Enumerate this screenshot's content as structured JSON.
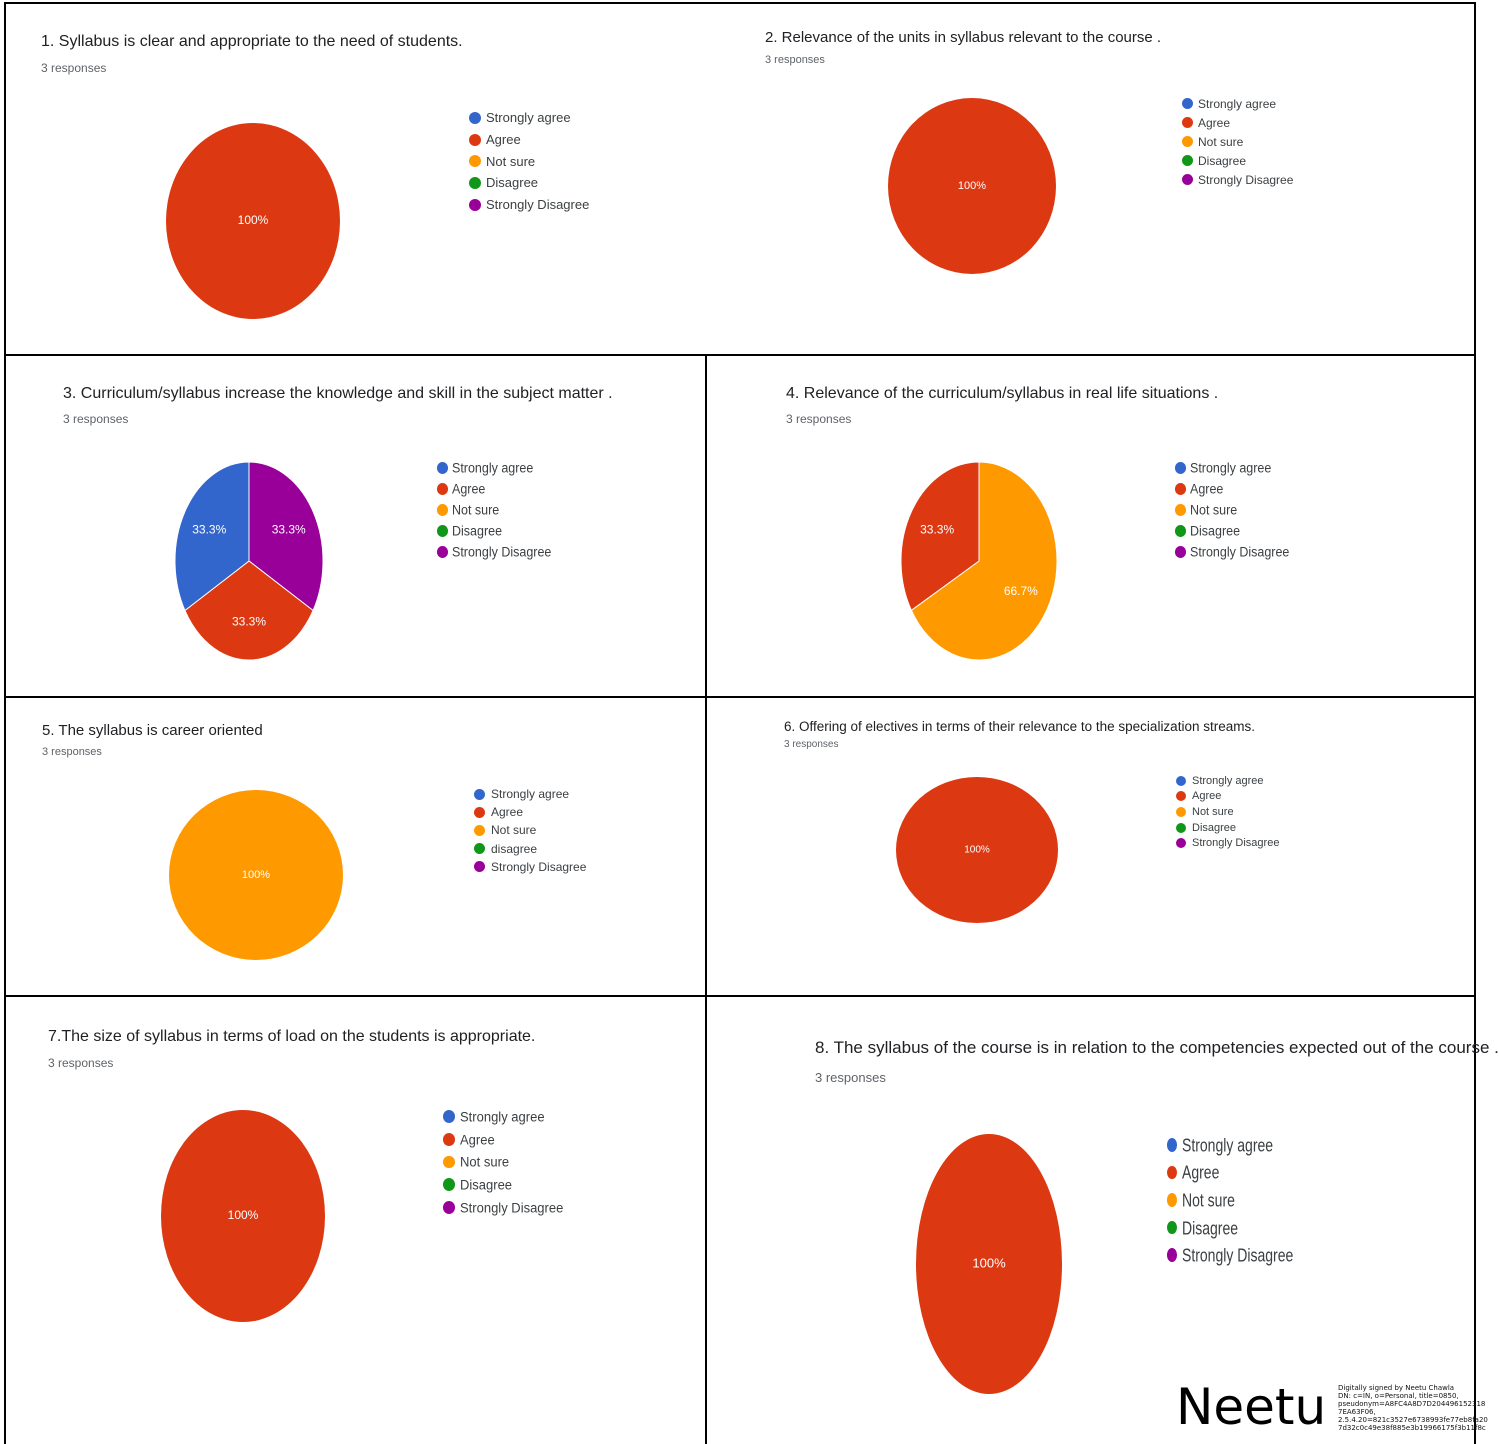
{
  "colors": {
    "strongly_agree": "#3366cc",
    "agree": "#dc3912",
    "not_sure": "#ff9900",
    "disagree": "#109618",
    "strongly_disagree": "#990099"
  },
  "charts": [
    {
      "title": "1. Syllabus is clear and appropriate to the need of students.",
      "responses": "3 responses",
      "legend": [
        "Strongly agree",
        "Agree",
        "Not sure",
        "Disagree",
        "Strongly Disagree"
      ]
    },
    {
      "title": "2. Relevance of the units in syllabus relevant to the course .",
      "responses": "3 responses",
      "legend": [
        "Strongly agree",
        "Agree",
        "Not sure",
        "Disagree",
        "Strongly Disagree"
      ]
    },
    {
      "title": "3. Curriculum/syllabus increase the knowledge and skill in the subject matter .",
      "responses": "3 responses",
      "legend": [
        "Strongly agree",
        "Agree",
        "Not sure",
        "Disagree",
        "Strongly Disagree"
      ]
    },
    {
      "title": "4. Relevance of the curriculum/syllabus in real life situations .",
      "responses": "3 responses",
      "legend": [
        "Strongly agree",
        "Agree",
        "Not sure",
        "Disagree",
        "Strongly Disagree"
      ]
    },
    {
      "title": "5. The syllabus is career oriented",
      "responses": "3 responses",
      "legend": [
        "Strongly agree",
        "Agree",
        "Not sure",
        "disagree",
        "Strongly Disagree"
      ]
    },
    {
      "title": "6. Offering of electives in terms of their relevance to the specialization streams.",
      "responses": "3 responses",
      "legend": [
        "Strongly agree",
        "Agree",
        "Not sure",
        "Disagree",
        "Strongly Disagree"
      ]
    },
    {
      "title": "7.The size of syllabus in terms of load on the students is appropriate.",
      "responses": "3 responses",
      "legend": [
        "Strongly agree",
        "Agree",
        "Not sure",
        "Disagree",
        "Strongly Disagree"
      ]
    },
    {
      "title": "8. The syllabus of the course is in relation to the competencies expected out of the course .",
      "responses": "3 responses",
      "legend": [
        "Strongly agree",
        "Agree",
        "Not sure",
        "Disagree",
        "Strongly Disagree"
      ]
    }
  ],
  "chart_data": [
    {
      "type": "pie",
      "title": "1. Syllabus is clear and appropriate to the need of students.",
      "subtitle": "3 responses",
      "categories": [
        "Strongly agree",
        "Agree",
        "Not sure",
        "Disagree",
        "Strongly Disagree"
      ],
      "values": [
        0,
        100,
        0,
        0,
        0
      ],
      "labels": [
        "",
        "100%",
        "",
        "",
        ""
      ],
      "legend_position": "right"
    },
    {
      "type": "pie",
      "title": "2. Relevance of the units in syllabus relevant to the course .",
      "subtitle": "3 responses",
      "categories": [
        "Strongly agree",
        "Agree",
        "Not sure",
        "Disagree",
        "Strongly Disagree"
      ],
      "values": [
        0,
        100,
        0,
        0,
        0
      ],
      "labels": [
        "",
        "100%",
        "",
        "",
        ""
      ],
      "legend_position": "right"
    },
    {
      "type": "pie",
      "title": "3. Curriculum/syllabus increase the knowledge and skill in the subject matter .",
      "subtitle": "3 responses",
      "categories": [
        "Strongly agree",
        "Agree",
        "Not sure",
        "Disagree",
        "Strongly Disagree"
      ],
      "values": [
        33.3,
        33.3,
        0,
        0,
        33.3
      ],
      "labels": [
        "33.3%",
        "33.3%",
        "",
        "",
        "33.3%"
      ],
      "legend_position": "right"
    },
    {
      "type": "pie",
      "title": "4. Relevance of the curriculum/syllabus in real life situations .",
      "subtitle": "3 responses",
      "categories": [
        "Strongly agree",
        "Agree",
        "Not sure",
        "Disagree",
        "Strongly Disagree"
      ],
      "values": [
        0,
        33.3,
        66.7,
        0,
        0
      ],
      "labels": [
        "",
        "33.3%",
        "66.7%",
        "",
        ""
      ],
      "legend_position": "right"
    },
    {
      "type": "pie",
      "title": "5. The syllabus is career oriented",
      "subtitle": "3 responses",
      "categories": [
        "Strongly agree",
        "Agree",
        "Not sure",
        "disagree",
        "Strongly Disagree"
      ],
      "values": [
        0,
        0,
        100,
        0,
        0
      ],
      "labels": [
        "",
        "",
        "100%",
        "",
        ""
      ],
      "legend_position": "right"
    },
    {
      "type": "pie",
      "title": "6. Offering of electives in terms of their relevance to the specialization streams.",
      "subtitle": "3 responses",
      "categories": [
        "Strongly agree",
        "Agree",
        "Not sure",
        "Disagree",
        "Strongly Disagree"
      ],
      "values": [
        0,
        100,
        0,
        0,
        0
      ],
      "labels": [
        "",
        "100%",
        "",
        "",
        ""
      ],
      "legend_position": "right"
    },
    {
      "type": "pie",
      "title": "7.The size of syllabus in terms of load on the students is appropriate.",
      "subtitle": "3 responses",
      "categories": [
        "Strongly agree",
        "Agree",
        "Not sure",
        "Disagree",
        "Strongly Disagree"
      ],
      "values": [
        0,
        100,
        0,
        0,
        0
      ],
      "labels": [
        "",
        "100%",
        "",
        "",
        ""
      ],
      "legend_position": "right"
    },
    {
      "type": "pie",
      "title": "8. The syllabus of the course is in relation to the competencies expected out of the course .",
      "subtitle": "3 responses",
      "categories": [
        "Strongly agree",
        "Agree",
        "Not sure",
        "Disagree",
        "Strongly Disagree"
      ],
      "values": [
        0,
        100,
        0,
        0,
        0
      ],
      "labels": [
        "",
        "100%",
        "",
        "",
        ""
      ],
      "legend_position": "right"
    }
  ],
  "signature": {
    "name": "Neetu",
    "details": [
      "Digitally signed by Neetu Chawla",
      "DN: c=IN, o=Personal, title=0850,",
      "pseudonym=A8FC4A8D7D204496152318",
      "7EA63F06,",
      "2.5.4.20=821c3527e6738993fe77eb8fa20",
      "7d32c0c49e38f885e3b19966175f3b11f8c"
    ]
  }
}
